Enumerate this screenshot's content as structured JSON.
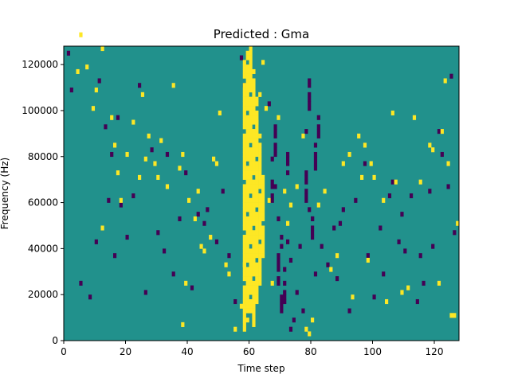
{
  "chart_data": {
    "type": "heatmap",
    "title": "Predicted : Gma",
    "xlabel": "Time step",
    "ylabel": "Frequency (Hz)",
    "xlim": [
      0,
      128
    ],
    "ylim": [
      0,
      128000
    ],
    "n_time_steps": 128,
    "n_freq_bins": 64,
    "freq_bin_hz": 2000,
    "x_ticks": [
      0,
      20,
      40,
      60,
      80,
      100,
      120
    ],
    "y_ticks": [
      0,
      20000,
      40000,
      60000,
      80000,
      100000,
      120000
    ],
    "x_tick_labels": [
      "0",
      "20",
      "40",
      "60",
      "80",
      "100",
      "120"
    ],
    "y_tick_labels": [
      "0",
      "20000",
      "40000",
      "60000",
      "80000",
      "100000",
      "120000"
    ],
    "colormap": "viridis",
    "colors": {
      "background": "#21918c",
      "high": "#fde725",
      "low": "#440154"
    },
    "cells_high": [
      [
        4,
        58
      ],
      [
        5,
        66
      ],
      [
        7,
        59
      ],
      [
        9,
        50
      ],
      [
        10,
        54
      ],
      [
        12,
        24
      ],
      [
        12,
        63
      ],
      [
        15,
        48
      ],
      [
        16,
        42
      ],
      [
        17,
        36
      ],
      [
        18,
        30
      ],
      [
        20,
        40
      ],
      [
        22,
        47
      ],
      [
        24,
        35
      ],
      [
        25,
        53
      ],
      [
        26,
        39
      ],
      [
        27,
        44
      ],
      [
        29,
        38
      ],
      [
        30,
        35
      ],
      [
        31,
        43
      ],
      [
        33,
        33
      ],
      [
        35,
        55
      ],
      [
        37,
        37
      ],
      [
        38,
        3
      ],
      [
        38,
        40
      ],
      [
        39,
        12
      ],
      [
        40,
        30
      ],
      [
        42,
        26
      ],
      [
        43,
        32
      ],
      [
        44,
        20
      ],
      [
        45,
        19
      ],
      [
        47,
        22
      ],
      [
        48,
        39
      ],
      [
        49,
        38
      ],
      [
        50,
        49
      ],
      [
        52,
        16
      ],
      [
        53,
        14
      ],
      [
        55,
        2
      ],
      [
        57,
        7
      ],
      [
        58,
        16
      ],
      [
        59,
        22
      ],
      [
        60,
        24
      ],
      [
        61,
        26
      ],
      [
        62,
        47
      ],
      [
        63,
        53
      ],
      [
        64,
        60
      ],
      [
        65,
        50
      ],
      [
        66,
        30
      ],
      [
        67,
        12
      ],
      [
        69,
        48
      ],
      [
        71,
        32
      ],
      [
        72,
        25
      ],
      [
        73,
        29
      ],
      [
        75,
        33
      ],
      [
        77,
        44
      ],
      [
        78,
        2
      ],
      [
        79,
        1
      ],
      [
        80,
        4
      ],
      [
        82,
        29
      ],
      [
        84,
        32
      ],
      [
        86,
        15
      ],
      [
        88,
        18
      ],
      [
        90,
        38
      ],
      [
        92,
        40
      ],
      [
        93,
        9
      ],
      [
        95,
        44
      ],
      [
        96,
        35
      ],
      [
        97,
        42
      ],
      [
        98,
        17
      ],
      [
        99,
        38
      ],
      [
        100,
        35
      ],
      [
        103,
        30
      ],
      [
        104,
        8
      ],
      [
        106,
        49
      ],
      [
        107,
        34
      ],
      [
        109,
        10
      ],
      [
        111,
        11
      ],
      [
        113,
        48
      ],
      [
        115,
        34
      ],
      [
        118,
        42
      ],
      [
        119,
        41
      ],
      [
        121,
        12
      ],
      [
        122,
        45
      ],
      [
        123,
        56
      ],
      [
        124,
        38
      ],
      [
        125,
        5
      ],
      [
        126,
        5
      ],
      [
        127,
        25
      ]
    ],
    "cells_low": [
      [
        1,
        62
      ],
      [
        2,
        54
      ],
      [
        5,
        12
      ],
      [
        8,
        9
      ],
      [
        10,
        21
      ],
      [
        11,
        56
      ],
      [
        13,
        46
      ],
      [
        14,
        30
      ],
      [
        15,
        40
      ],
      [
        16,
        18
      ],
      [
        17,
        48
      ],
      [
        18,
        29
      ],
      [
        20,
        22
      ],
      [
        22,
        31
      ],
      [
        24,
        55
      ],
      [
        26,
        10
      ],
      [
        28,
        41
      ],
      [
        30,
        23
      ],
      [
        32,
        19
      ],
      [
        33,
        40
      ],
      [
        35,
        14
      ],
      [
        37,
        26
      ],
      [
        39,
        36
      ],
      [
        41,
        11
      ],
      [
        43,
        27
      ],
      [
        45,
        25
      ],
      [
        46,
        28
      ],
      [
        49,
        21
      ],
      [
        51,
        32
      ],
      [
        53,
        18
      ],
      [
        55,
        8
      ],
      [
        57,
        61
      ],
      [
        58,
        55
      ],
      [
        66,
        51
      ],
      [
        67,
        39
      ],
      [
        68,
        33
      ],
      [
        69,
        26
      ],
      [
        70,
        20
      ],
      [
        70,
        22
      ],
      [
        71,
        15
      ],
      [
        72,
        21
      ],
      [
        73,
        2
      ],
      [
        73,
        17
      ],
      [
        74,
        4
      ],
      [
        75,
        10
      ],
      [
        76,
        20
      ],
      [
        77,
        6
      ],
      [
        78,
        45
      ],
      [
        79,
        28
      ],
      [
        80,
        26
      ],
      [
        81,
        14
      ],
      [
        83,
        20
      ],
      [
        85,
        16
      ],
      [
        87,
        24
      ],
      [
        88,
        13
      ],
      [
        89,
        25
      ],
      [
        90,
        28
      ],
      [
        92,
        6
      ],
      [
        94,
        30
      ],
      [
        97,
        38
      ],
      [
        98,
        18
      ],
      [
        100,
        9
      ],
      [
        102,
        24
      ],
      [
        103,
        14
      ],
      [
        105,
        31
      ],
      [
        106,
        34
      ],
      [
        108,
        21
      ],
      [
        109,
        27
      ],
      [
        110,
        19
      ],
      [
        112,
        31
      ],
      [
        114,
        8
      ],
      [
        115,
        18
      ],
      [
        116,
        12
      ],
      [
        118,
        32
      ],
      [
        119,
        20
      ],
      [
        121,
        45
      ],
      [
        122,
        40
      ],
      [
        124,
        33
      ],
      [
        125,
        57
      ],
      [
        126,
        23
      ]
    ]
  }
}
